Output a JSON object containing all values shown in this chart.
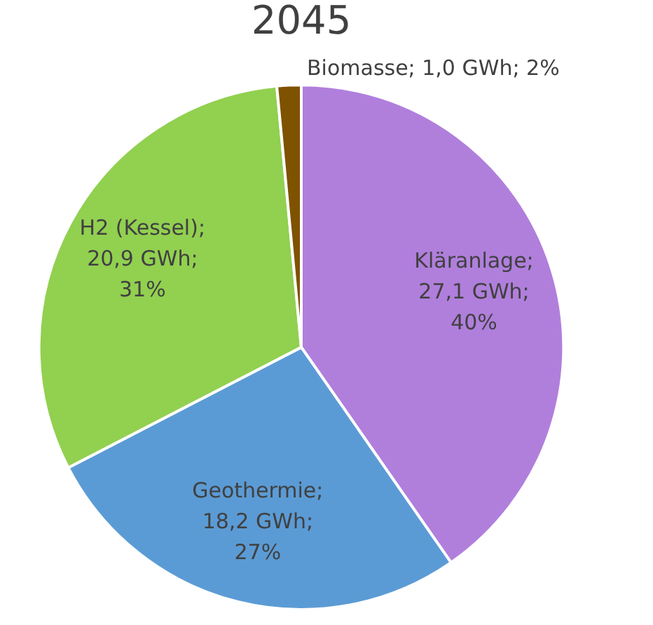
{
  "chart_data": {
    "type": "pie",
    "title": "2045",
    "categories": [
      "Kläranlage",
      "Geothermie",
      "H2 (Kessel)",
      "Biomasse"
    ],
    "values": [
      27.1,
      18.2,
      20.9,
      1.0
    ],
    "colors": [
      "#b07fdc",
      "#5b9bd5",
      "#92d050",
      "#7f5200"
    ],
    "value_labels": [
      "; 27,1 GWh; 40%",
      "; 18,2 GWh; 27%",
      "; 20,9 GWh; 31%",
      "; 1,0 GWh; 2%"
    ],
    "legend": false
  }
}
